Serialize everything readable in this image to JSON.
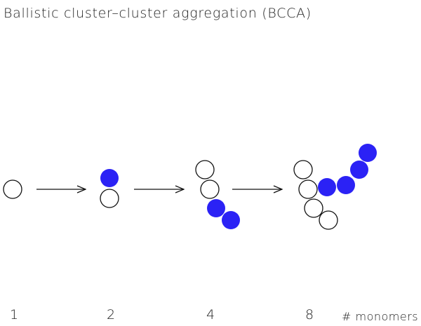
{
  "title": "Ballistic cluster–cluster aggregation (BCCA)",
  "colors": {
    "filled_monomer": "#2b22f5",
    "outline": "#111111"
  },
  "stages": [
    {
      "count_label": "1"
    },
    {
      "count_label": "2"
    },
    {
      "count_label": "4"
    },
    {
      "count_label": "8"
    }
  ],
  "unit_label": "# monomers"
}
